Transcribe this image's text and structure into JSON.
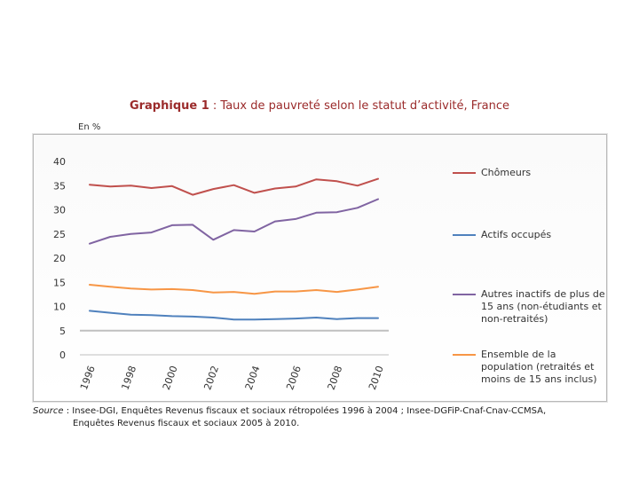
{
  "header": {
    "title_bold": "Graphique 1",
    "title_rest": " : Taux de pauvreté selon le statut d’activité, France",
    "unit": "En %"
  },
  "source": {
    "label": "Source",
    "line1": " : Insee-DGI, Enquêtes Revenus fiscaux et sociaux rétropolées 1996 à 2004 ; Insee-DGFiP-Cnaf-Cnav-CCMSA,",
    "line2": "Enquêtes Revenus fiscaux et sociaux 2005 à 2010."
  },
  "chart_data": {
    "type": "line",
    "title": "Graphique 1 : Taux de pauvreté selon le statut d’activité, France",
    "ylabel": "En %",
    "xlabel": "",
    "ylim": [
      0,
      40
    ],
    "yticks": [
      0,
      5,
      10,
      15,
      20,
      25,
      30,
      35,
      40
    ],
    "x": [
      1996,
      1997,
      1998,
      1999,
      2000,
      2001,
      2002,
      2003,
      2004,
      2005,
      2006,
      2007,
      2008,
      2009,
      2010
    ],
    "xtick_labels": [
      "1996",
      "1998",
      "2000",
      "2002",
      "2004",
      "2006",
      "2008",
      "2010"
    ],
    "grid": false,
    "legend_position": "right",
    "series": [
      {
        "name": "Chômeurs",
        "color": "#c0504d",
        "values": [
          35.2,
          34.8,
          35.0,
          34.5,
          34.9,
          33.1,
          34.3,
          35.1,
          33.5,
          34.4,
          34.8,
          36.3,
          35.9,
          35.0,
          36.4
        ]
      },
      {
        "name": "Actifs occupés",
        "color": "#4f81bd",
        "values": [
          9.1,
          8.7,
          8.3,
          8.2,
          8.0,
          7.9,
          7.7,
          7.3,
          7.3,
          7.4,
          7.5,
          7.7,
          7.4,
          7.6,
          7.6
        ]
      },
      {
        "name": "Autres inactifs de plus de 15 ans (non-étudiants et non-retraités)",
        "color": "#8064a2",
        "values": [
          23.0,
          24.4,
          25.0,
          25.3,
          26.8,
          26.9,
          23.8,
          25.8,
          25.5,
          27.6,
          28.1,
          29.4,
          29.5,
          30.4,
          32.2
        ]
      },
      {
        "name": "Ensemble de la population (retraités et moins de 15 ans inclus)",
        "color": "#f79646",
        "values": [
          14.5,
          14.1,
          13.7,
          13.5,
          13.6,
          13.4,
          12.9,
          13.0,
          12.6,
          13.1,
          13.1,
          13.4,
          13.0,
          13.5,
          14.1
        ]
      }
    ]
  }
}
